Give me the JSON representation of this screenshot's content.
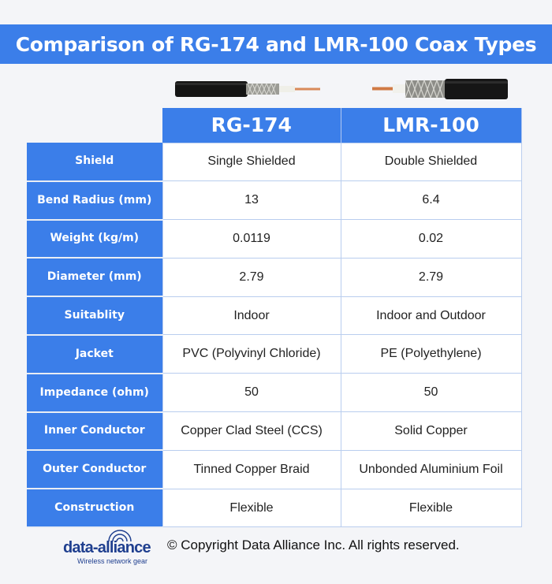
{
  "title": "Comparison of RG-174 and LMR-100 Coax Types",
  "columns": [
    "RG-174",
    "LMR-100"
  ],
  "rows": [
    {
      "label": "Shield",
      "rg174": "Single Shielded",
      "lmr100": "Double Shielded"
    },
    {
      "label": "Bend Radius (mm)",
      "rg174": "13",
      "lmr100": "6.4"
    },
    {
      "label": "Weight (kg/m)",
      "rg174": "0.0119",
      "lmr100": "0.02"
    },
    {
      "label": "Diameter (mm)",
      "rg174": "2.79",
      "lmr100": "2.79"
    },
    {
      "label": "Suitablity",
      "rg174": "Indoor",
      "lmr100": "Indoor and Outdoor"
    },
    {
      "label": "Jacket",
      "rg174": "PVC (Polyvinyl Chloride)",
      "lmr100": "PE (Polyethylene)"
    },
    {
      "label": "Impedance (ohm)",
      "rg174": "50",
      "lmr100": "50"
    },
    {
      "label": "Inner Conductor",
      "rg174": "Copper Clad Steel (CCS)",
      "lmr100": "Solid Copper"
    },
    {
      "label": "Outer Conductor",
      "rg174": "Tinned Copper Braid",
      "lmr100": "Unbonded Aluminium Foil"
    },
    {
      "label": "Construction",
      "rg174": "Flexible",
      "lmr100": "Flexible"
    }
  ],
  "footer": {
    "logo_name": "data-alliance",
    "logo_tagline": "Wireless network gear",
    "copyright": "© Copyright Data Alliance Inc. All rights reserved."
  },
  "colors": {
    "accent": "#3b7ee9",
    "logo": "#1f3f8f"
  },
  "icons": [
    "rg174-cable-image",
    "lmr100-cable-image",
    "signal-arc-icon"
  ]
}
